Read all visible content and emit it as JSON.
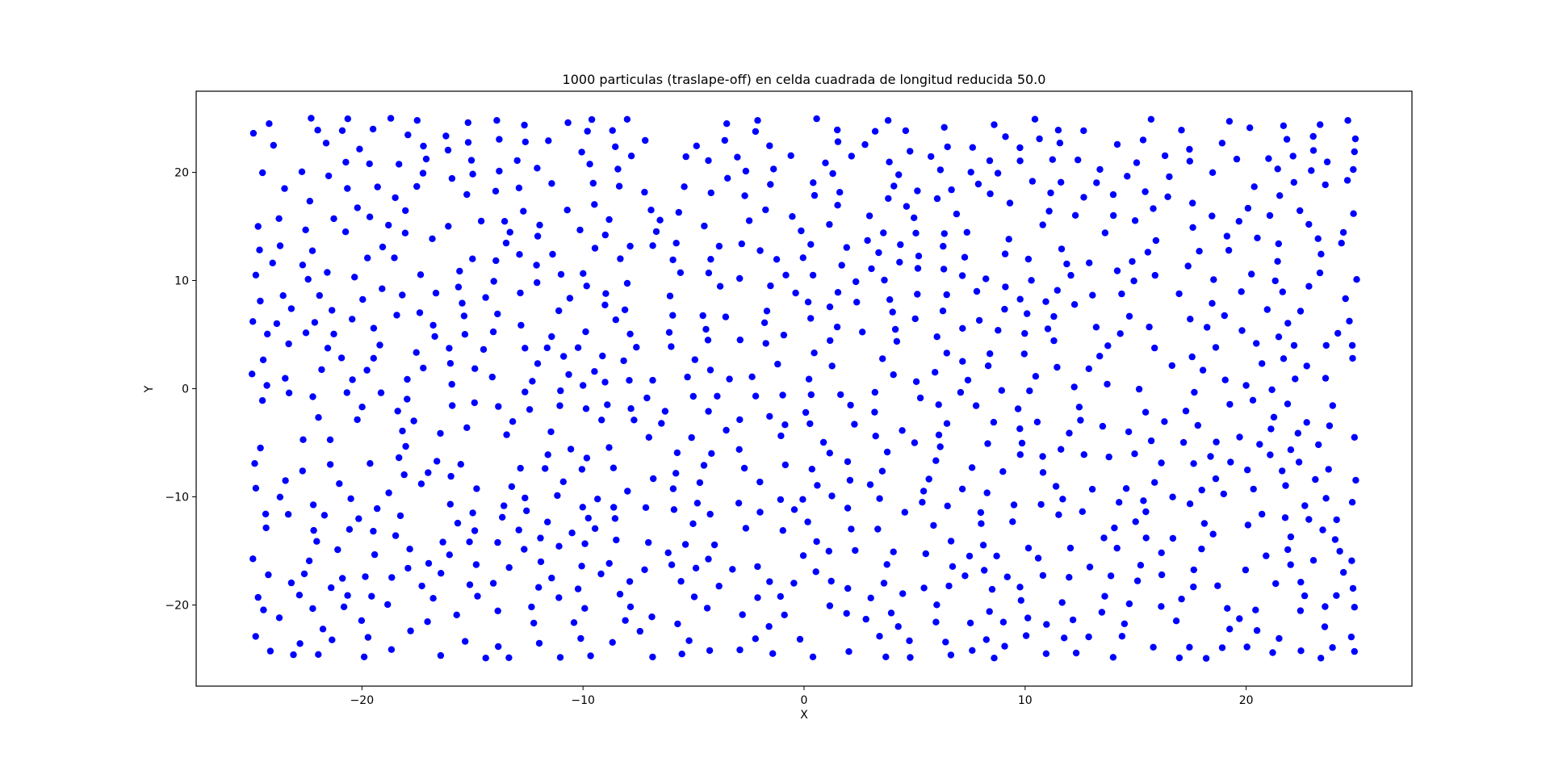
{
  "chart_data": {
    "type": "scatter",
    "title": "1000 particulas (traslape-off) en celda cuadrada de longitud reducida 50.0",
    "xlabel": "X",
    "ylabel": "Y",
    "xlim": [
      -27.5,
      27.5
    ],
    "ylim": [
      -27.5,
      27.5
    ],
    "xticks": [
      -20,
      -10,
      0,
      10,
      20
    ],
    "yticks": [
      -20,
      -10,
      0,
      10,
      20
    ],
    "xtick_labels": [
      "−20",
      "−10",
      "0",
      "10",
      "20"
    ],
    "ytick_labels": [
      "−20",
      "−10",
      "0",
      "10",
      "20"
    ],
    "grid": false,
    "marker_color": "#0000ff",
    "n_points": 1000,
    "point_region": {
      "x_range": [
        -25,
        25
      ],
      "y_range": [
        -25,
        25
      ],
      "min_separation": 1.0
    },
    "points_sample": [
      [
        -24.8,
        10.5
      ],
      [
        -24.6,
        8.1
      ],
      [
        -24.2,
        24.5
      ],
      [
        -24.0,
        22.5
      ],
      [
        -23.5,
        18.5
      ],
      [
        -22.3,
        25.0
      ],
      [
        -22.0,
        23.9
      ],
      [
        -19.5,
        24.0
      ],
      [
        -17.5,
        24.8
      ],
      [
        -15.2,
        24.6
      ],
      [
        -13.9,
        24.8
      ],
      [
        -9.8,
        23.8
      ],
      [
        -8.0,
        24.9
      ],
      [
        -3.5,
        24.5
      ],
      [
        -2.1,
        24.8
      ],
      [
        3.8,
        24.8
      ],
      [
        8.6,
        24.4
      ],
      [
        11.5,
        23.9
      ],
      [
        15.7,
        24.9
      ],
      [
        24.6,
        24.8
      ],
      [
        24.9,
        21.9
      ],
      [
        25.0,
        10.1
      ],
      [
        24.8,
        4.0
      ],
      [
        24.9,
        -4.5
      ],
      [
        24.8,
        -10.5
      ],
      [
        24.9,
        -20.2
      ],
      [
        24.9,
        -24.3
      ],
      [
        21.2,
        -24.4
      ],
      [
        15.8,
        -23.9
      ],
      [
        8.6,
        -24.9
      ],
      [
        3.7,
        -24.8
      ],
      [
        0.4,
        -24.8
      ],
      [
        -5.2,
        -23.3
      ],
      [
        -10.1,
        -23.1
      ],
      [
        -14.4,
        -24.9
      ],
      [
        -19.9,
        -24.8
      ],
      [
        -23.1,
        -24.6
      ],
      [
        -24.7,
        -19.3
      ],
      [
        -24.8,
        -9.2
      ],
      [
        -24.5,
        -1.1
      ],
      [
        -24.3,
        0.3
      ],
      [
        -24.7,
        15.0
      ],
      [
        0.3,
        6.5
      ],
      [
        -10.0,
        0.3
      ],
      [
        10.2,
        -0.2
      ],
      [
        -6.1,
        5.2
      ],
      [
        5.0,
        -5.0
      ],
      [
        -15.0,
        12.0
      ],
      [
        15.0,
        -12.3
      ],
      [
        20.0,
        0.3
      ]
    ]
  }
}
